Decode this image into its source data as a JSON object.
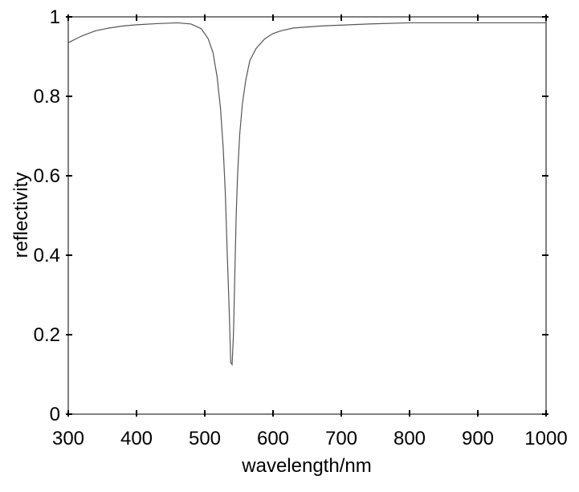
{
  "chart_data": {
    "type": "line",
    "xlabel": "wavelength/nm",
    "ylabel": "reflectivity",
    "xlim": [
      300,
      1000
    ],
    "ylim": [
      0,
      1
    ],
    "xticks": [
      300,
      400,
      500,
      600,
      700,
      800,
      900,
      1000
    ],
    "yticks": [
      0,
      0.2,
      0.4,
      0.6,
      0.8,
      1
    ],
    "series": [
      {
        "color": "#555555",
        "x": [
          300,
          320,
          340,
          360,
          380,
          400,
          430,
          460,
          480,
          495,
          505,
          512,
          518,
          523,
          527,
          530,
          533,
          536,
          538,
          540,
          542,
          544,
          546,
          548,
          551,
          555,
          560,
          566,
          575,
          588,
          600,
          612,
          630,
          670,
          740,
          800,
          900,
          1000
        ],
        "values": [
          0.935,
          0.952,
          0.965,
          0.972,
          0.977,
          0.98,
          0.983,
          0.985,
          0.982,
          0.97,
          0.945,
          0.91,
          0.85,
          0.77,
          0.67,
          0.56,
          0.4,
          0.25,
          0.13,
          0.125,
          0.2,
          0.35,
          0.5,
          0.6,
          0.7,
          0.78,
          0.84,
          0.89,
          0.92,
          0.945,
          0.958,
          0.965,
          0.972,
          0.977,
          0.982,
          0.985,
          0.985,
          0.985
        ]
      }
    ]
  }
}
